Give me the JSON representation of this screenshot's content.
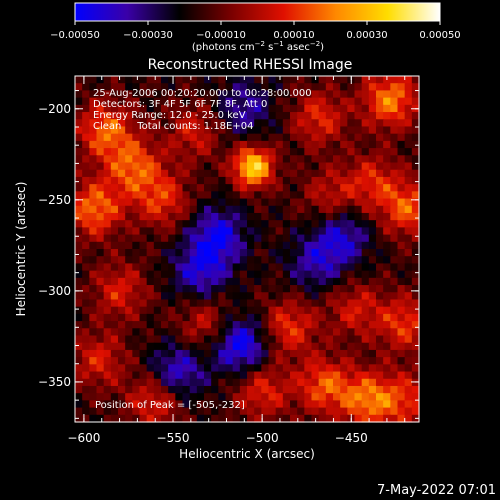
{
  "chart_data": {
    "type": "heatmap",
    "title": "Reconstructed RHESSI Image",
    "xlabel": "Heliocentric X (arcsec)",
    "ylabel": "Heliocentric Y (arcsec)",
    "xlim": [
      -605,
      -412
    ],
    "ylim": [
      -372,
      -182
    ],
    "xticks": [
      -600,
      -550,
      -500,
      -450
    ],
    "yticks": [
      -200,
      -250,
      -300,
      -350
    ],
    "xtick_labels": [
      "−600",
      "−550",
      "−500",
      "−450"
    ],
    "ytick_labels": [
      "−200",
      "−250",
      "−300",
      "−350"
    ],
    "colorbar": {
      "range": [
        -0.0005,
        0.0005
      ],
      "ticks": [
        -0.0005,
        -0.0003,
        -0.0001,
        0.0001,
        0.0003,
        0.0005
      ],
      "tick_labels": [
        "−0.00050",
        "−0.00030",
        "−0.00010",
        "0.00010",
        "0.00030",
        "0.00050"
      ],
      "unit_parts": [
        "(photons cm",
        "−2",
        " s",
        "−1",
        " asec",
        "−2",
        ")"
      ],
      "colors": [
        "#0000ff",
        "#3a00a8",
        "#000000",
        "#7a0000",
        "#e01000",
        "#ff8800",
        "#ffdd00",
        "#ffffff"
      ]
    },
    "annotations": [
      "25-Aug-2006 00:20:20.000 to 00:28:00.000",
      "Detectors: 3F 4F 5F 6F 7F 8F, Att 0",
      "Energy Range: 12.0 - 25.0 keV",
      "Clean     Total counts: 1.18E+04"
    ],
    "peak_label": "Position of Peak = [-505,-232]",
    "peak": [
      -505,
      -232
    ],
    "peak_value": 0.0005,
    "sources": [
      {
        "x": -505,
        "y": -232,
        "value": 0.00052
      },
      {
        "x": -588,
        "y": -212,
        "value": 0.00032
      },
      {
        "x": -572,
        "y": -232,
        "value": 0.0003
      },
      {
        "x": -594,
        "y": -255,
        "value": 0.00034
      },
      {
        "x": -556,
        "y": -250,
        "value": 0.00025
      },
      {
        "x": -538,
        "y": -213,
        "value": 0.0002
      },
      {
        "x": -468,
        "y": -205,
        "value": 0.00024
      },
      {
        "x": -428,
        "y": -195,
        "value": 0.00036
      },
      {
        "x": -418,
        "y": -255,
        "value": 0.0003
      },
      {
        "x": -438,
        "y": -240,
        "value": 0.00022
      },
      {
        "x": -462,
        "y": -248,
        "value": 0.00018
      },
      {
        "x": -580,
        "y": -300,
        "value": 0.00022
      },
      {
        "x": -532,
        "y": -318,
        "value": 0.0002
      },
      {
        "x": -485,
        "y": -320,
        "value": 0.00026
      },
      {
        "x": -448,
        "y": -310,
        "value": 0.0002
      },
      {
        "x": -420,
        "y": -318,
        "value": 0.00026
      },
      {
        "x": -592,
        "y": -338,
        "value": 0.00022
      },
      {
        "x": -560,
        "y": -360,
        "value": 0.00026
      },
      {
        "x": -500,
        "y": -355,
        "value": 0.00024
      },
      {
        "x": -465,
        "y": -352,
        "value": 0.0003
      },
      {
        "x": -440,
        "y": -360,
        "value": 0.00034
      },
      {
        "x": -418,
        "y": -360,
        "value": 0.00022
      },
      {
        "x": -525,
        "y": -270,
        "value": -0.0003
      },
      {
        "x": -512,
        "y": -330,
        "value": -0.00035
      },
      {
        "x": -455,
        "y": -270,
        "value": -0.00025
      },
      {
        "x": -548,
        "y": -345,
        "value": -0.00028
      },
      {
        "x": -470,
        "y": -285,
        "value": -0.0002
      },
      {
        "x": -535,
        "y": -290,
        "value": -0.00025
      },
      {
        "x": -510,
        "y": -200,
        "value": -0.0002
      }
    ]
  },
  "footer": {
    "date_stamp": "7-May-2022 07:01"
  }
}
